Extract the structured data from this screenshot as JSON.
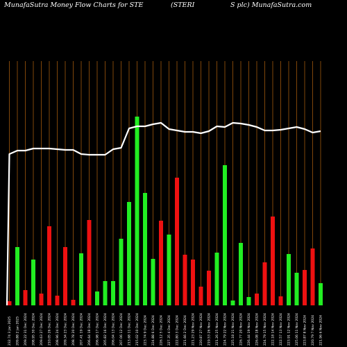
{
  "header": {
    "left": "MunafaSutra  Money Flow  Charts for STE",
    "middle": "(STERI",
    "right": "S plc) MunafaSutra.com"
  },
  "colors": {
    "background": "#000000",
    "gridline": "#b8650f",
    "up_bar": "#22ee22",
    "down_bar": "#ee1111",
    "price_line": "#ffffff"
  },
  "chart_data": {
    "type": "bar",
    "title": "MunafaSutra  Money Flow  Charts for STE (STERIS plc) MunafaSutra.com",
    "categories": [
      "232.74 3 Jan 2025",
      "209.88 2 Jan 2025",
      "209.22 31 Dec 2024",
      "208.95 30 Dec 2024",
      "209.63 27 Dec 2024",
      "210.05 26 Dec 2024",
      "208.96 24 Dec 2024",
      "209.34 23 Dec 2024",
      "208.78 20 Dec 2024",
      "207.41 19 Dec 2024",
      "206.64 18 Dec 2024",
      "206.98 17 Dec 2024",
      "205.82 16 Dec 2024",
      "206.04 13 Dec 2024",
      "207.06 12 Dec 2024",
      "213.68 11 Dec 2024",
      "215.02 10 Dec 2024",
      "223.74 9 Dec 2024",
      "224.88 6 Dec 2024",
      "226.12 5 Dec 2024",
      "227.35 4 Dec 2024",
      "222.80 3 Dec 2024",
      "221.66 2 Dec 2024",
      "221.23 29 Nov 2024",
      "220.87 27 Nov 2024",
      "219.53 26 Nov 2024",
      "221.26 25 Nov 2024",
      "224.79 22 Nov 2024",
      "225.18 21 Nov 2024",
      "226.77 20 Nov 2024",
      "226.44 19 Nov 2024",
      "226.08 18 Nov 2024",
      "224.79 15 Nov 2024",
      "222.18 14 Nov 2024",
      "222.57 13 Nov 2024",
      "223.91 12 Nov 2024",
      "225.06 11 Nov 2024",
      "223.87 8 Nov 2024",
      "220.79 7 Nov 2024",
      "221.96 6 Nov 2024"
    ],
    "bar_heights": [
      6,
      84,
      22,
      66,
      17,
      114,
      14,
      84,
      8,
      75,
      123,
      20,
      35,
      35,
      96,
      149,
      272,
      162,
      67,
      122,
      102,
      184,
      73,
      66,
      27,
      50,
      76,
      202,
      7,
      90,
      12,
      17,
      62,
      128,
      13,
      74,
      47,
      51,
      82,
      32
    ],
    "bar_colors": [
      "red",
      "green",
      "red",
      "green",
      "red",
      "red",
      "red",
      "red",
      "red",
      "green",
      "red",
      "green",
      "green",
      "green",
      "green",
      "green",
      "green",
      "green",
      "green",
      "red",
      "green",
      "red",
      "red",
      "red",
      "red",
      "red",
      "green",
      "green",
      "green",
      "green",
      "green",
      "red",
      "red",
      "red",
      "red",
      "green",
      "green",
      "red",
      "red",
      "green"
    ],
    "price_line": [
      222,
      217,
      217,
      214,
      214,
      214,
      215,
      216,
      216,
      222,
      223,
      223,
      223,
      215,
      213,
      185,
      182,
      182,
      179,
      177,
      186,
      188,
      190,
      190,
      192,
      189,
      182,
      183,
      177,
      178,
      180,
      183,
      188,
      188,
      187,
      185,
      183,
      186,
      191,
      189
    ],
    "xlabel": "",
    "ylabel": "",
    "grid": "vertical"
  }
}
